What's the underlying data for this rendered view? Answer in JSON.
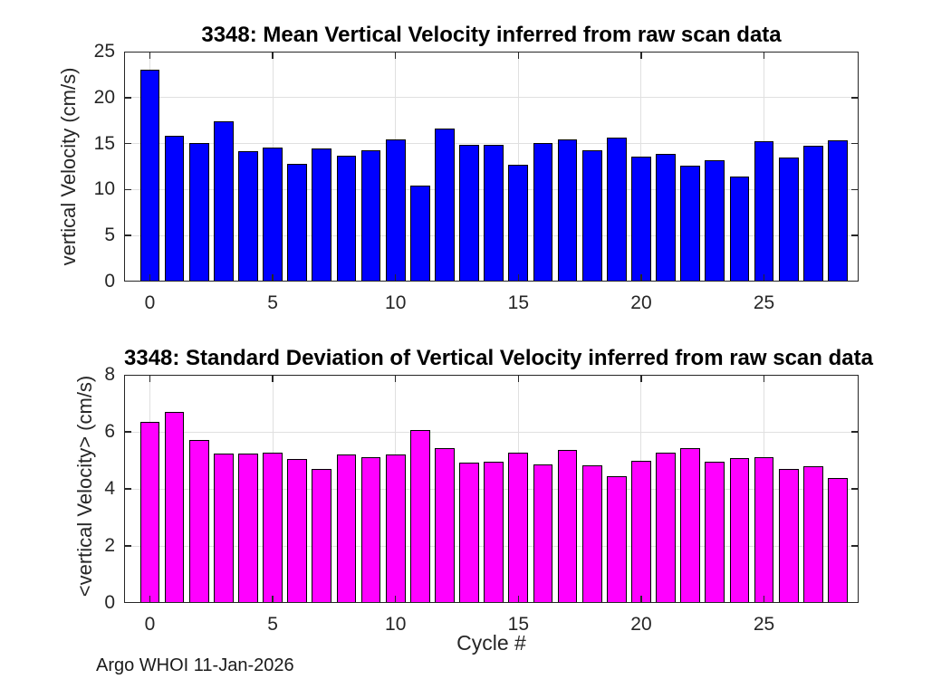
{
  "xlabel": "Cycle #",
  "footer": "Argo WHOI 11-Jan-2026",
  "colors": {
    "grid": "#e0e0e0",
    "axis_box": "#262626",
    "tick_mark": "#262626",
    "tick_label": "#262626",
    "title": "#000000",
    "mean_bar": "#0000ff",
    "std_bar": "#ff00ff",
    "bar_edge": "#000000",
    "background": "#ffffff"
  },
  "chart_data": [
    {
      "type": "bar",
      "title": "3348: Mean Vertical Velocity inferred from raw scan data",
      "ylabel": "vertical Velocity (cm/s)",
      "xlabel": "Cycle #",
      "bar_color": "#0000ff",
      "bar_edge_color": "#000000",
      "grid": true,
      "legend": "none",
      "xlim": [
        -1.05,
        28.85
      ],
      "ylim": [
        0,
        25
      ],
      "yticks": [
        0,
        5,
        10,
        15,
        20,
        25
      ],
      "xticks": [
        0,
        5,
        10,
        15,
        20,
        25
      ],
      "bar_width_units": 0.8,
      "categories": [
        0,
        1,
        2,
        3,
        4,
        5,
        6,
        7,
        8,
        9,
        10,
        11,
        12,
        13,
        14,
        15,
        16,
        17,
        18,
        19,
        20,
        21,
        22,
        23,
        24,
        25,
        26,
        27,
        28
      ],
      "values": [
        23.0,
        15.8,
        15.05,
        17.45,
        14.2,
        14.55,
        12.8,
        14.45,
        13.65,
        14.3,
        15.45,
        10.4,
        16.6,
        14.9,
        14.9,
        12.7,
        15.1,
        15.45,
        14.3,
        15.65,
        13.55,
        13.9,
        12.6,
        13.2,
        11.4,
        15.3,
        13.45,
        14.8,
        15.4
      ]
    },
    {
      "type": "bar",
      "title": "3348: Standard Deviation of Vertical Velocity inferred from raw scan data",
      "ylabel": "<vertical Velocity> (cm/s)",
      "xlabel": "Cycle #",
      "bar_color": "#ff00ff",
      "bar_edge_color": "#000000",
      "grid": true,
      "legend": "none",
      "xlim": [
        -1.05,
        28.85
      ],
      "ylim": [
        0,
        8
      ],
      "yticks": [
        0,
        2,
        4,
        6,
        8
      ],
      "xticks": [
        0,
        5,
        10,
        15,
        20,
        25
      ],
      "bar_width_units": 0.8,
      "categories": [
        0,
        1,
        2,
        3,
        4,
        5,
        6,
        7,
        8,
        9,
        10,
        11,
        12,
        13,
        14,
        15,
        16,
        17,
        18,
        19,
        20,
        21,
        22,
        23,
        24,
        25,
        26,
        27,
        28
      ],
      "values": [
        6.35,
        6.7,
        5.72,
        5.23,
        5.23,
        5.26,
        5.06,
        4.7,
        5.2,
        5.1,
        5.2,
        6.07,
        5.44,
        4.93,
        4.96,
        5.27,
        4.85,
        5.35,
        4.82,
        4.45,
        4.97,
        5.26,
        5.42,
        4.96,
        5.09,
        5.12,
        4.7,
        4.78,
        4.37
      ]
    }
  ]
}
